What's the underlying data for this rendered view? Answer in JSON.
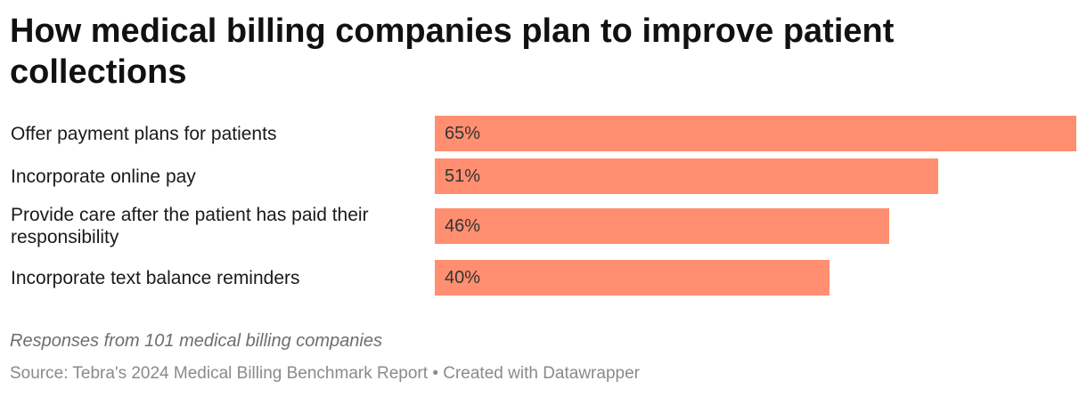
{
  "chart_data": {
    "type": "bar",
    "orientation": "horizontal",
    "title": "How medical billing companies plan to improve patient collections",
    "categories": [
      "Offer payment plans for patients",
      "Incorporate online pay",
      "Provide care after the patient has paid their responsibility",
      "Incorporate text balance reminders"
    ],
    "values": [
      65,
      51,
      46,
      40
    ],
    "value_labels": [
      "65%",
      "51%",
      "46%",
      "40%"
    ],
    "xlim": [
      0,
      65
    ],
    "grid": false,
    "bar_color": "#ff8f70"
  },
  "notes": "Responses from 101 medical billing companies",
  "source": {
    "prefix": "Source:",
    "name": "Tebra's 2024 Medical Billing Benchmark Report",
    "separator": "•",
    "credit": "Created with Datawrapper"
  }
}
